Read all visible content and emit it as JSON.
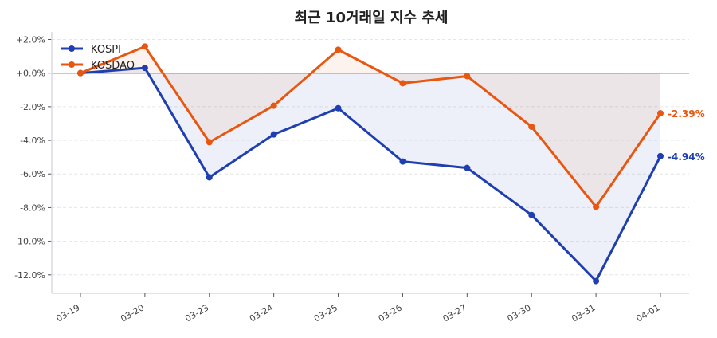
{
  "chart_data": {
    "type": "line",
    "title": "최근 10거래일 지수 추세",
    "xlabel": "",
    "ylabel": "",
    "categories": [
      "03-19",
      "03-20",
      "03-23",
      "03-24",
      "03-25",
      "03-26",
      "03-27",
      "03-30",
      "03-31",
      "04-01"
    ],
    "ylim": [
      -13.1,
      2.45
    ],
    "yticks": [
      2,
      0,
      -2,
      -4,
      -6,
      -8,
      -10,
      -12
    ],
    "ytick_labels": [
      "+2.0%",
      "+0.0%",
      "-2.0%",
      "-4.0%",
      "-6.0%",
      "-8.0%",
      "-10.0%",
      "-12.0%"
    ],
    "grid": true,
    "legend_position": "top-left",
    "series": [
      {
        "name": "KOSPI",
        "color": "#1f3fb0",
        "values": [
          0,
          0.31,
          -6.2,
          -3.65,
          -2.09,
          -5.26,
          -5.64,
          -8.44,
          -12.37,
          -4.94
        ],
        "end_label": "-4.94%"
      },
      {
        "name": "KOSDAQ",
        "color": "#e8560f",
        "values": [
          0,
          1.58,
          -4.11,
          -1.94,
          1.39,
          -0.6,
          -0.18,
          -3.19,
          -7.96,
          -2.39
        ],
        "end_label": "-2.39%"
      }
    ]
  }
}
